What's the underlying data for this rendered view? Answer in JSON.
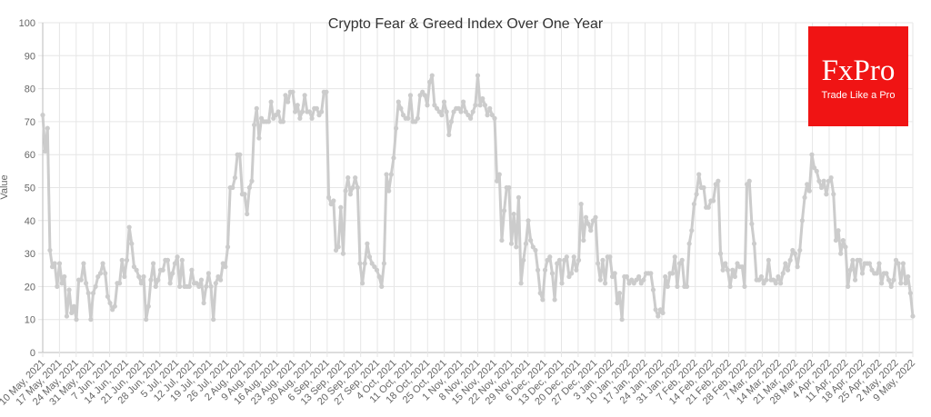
{
  "chart_data": {
    "type": "line",
    "title": "Crypto Fear & Greed Index Over One Year",
    "xlabel": "",
    "ylabel": "Value",
    "ylim": [
      0,
      100
    ],
    "yticks": [
      0,
      10,
      20,
      30,
      40,
      50,
      60,
      70,
      80,
      90,
      100
    ],
    "grid": true,
    "legend": "none",
    "line_color": "#cccccc",
    "x_range": [
      "10 May, 2021",
      "9 May, 2022"
    ],
    "xticks": [
      "10 May, 2021",
      "17 May, 2021",
      "24 May, 2021",
      "31 May, 2021",
      "7 Jun, 2021",
      "14 Jun, 2021",
      "21 Jun, 2021",
      "28 Jun, 2021",
      "5 Jul, 2021",
      "12 Jul, 2021",
      "19 Jul, 2021",
      "26 Jul, 2021",
      "2 Aug, 2021",
      "9 Aug, 2021",
      "16 Aug, 2021",
      "23 Aug, 2021",
      "30 Aug, 2021",
      "6 Sep, 2021",
      "13 Sep, 2021",
      "20 Sep, 2021",
      "27 Sep, 2021",
      "4 Oct, 2021",
      "11 Oct, 2021",
      "18 Oct, 2021",
      "25 Oct, 2021",
      "1 Nov, 2021",
      "8 Nov, 2021",
      "15 Nov, 2021",
      "22 Nov, 2021",
      "29 Nov, 2021",
      "6 Dec, 2021",
      "13 Dec, 2021",
      "20 Dec, 2021",
      "27 Dec, 2021",
      "3 Jan, 2022",
      "10 Jan, 2022",
      "17 Jan, 2022",
      "24 Jan, 2022",
      "31 Jan, 2022",
      "7 Feb, 2022",
      "14 Feb, 2022",
      "21 Feb, 2022",
      "28 Feb, 2022",
      "7 Mar, 2022",
      "14 Mar, 2022",
      "21 Mar, 2022",
      "28 Mar, 2022",
      "4 Apr, 2022",
      "11 Apr, 2022",
      "18 Apr, 2022",
      "25 Apr, 2022",
      "2 May, 2022",
      "9 May, 2022"
    ],
    "values": [
      72,
      61,
      68,
      31,
      26,
      27,
      20,
      27,
      21,
      23,
      11,
      19,
      12,
      14,
      10,
      22,
      22,
      27,
      21,
      18,
      10,
      18,
      20,
      23,
      24,
      27,
      24,
      17,
      15,
      13,
      14,
      21,
      21,
      28,
      23,
      28,
      38,
      33,
      26,
      25,
      23,
      21,
      23,
      10,
      14,
      22,
      27,
      20,
      22,
      25,
      25,
      28,
      28,
      21,
      24,
      27,
      29,
      20,
      28,
      20,
      20,
      20,
      25,
      21,
      21,
      20,
      22,
      15,
      20,
      24,
      20,
      10,
      21,
      23,
      22,
      27,
      26,
      32,
      50,
      50,
      53,
      60,
      60,
      48,
      48,
      42,
      50,
      52,
      69,
      74,
      65,
      71,
      70,
      70,
      70,
      76,
      71,
      72,
      73,
      70,
      70,
      78,
      76,
      79,
      79,
      73,
      75,
      71,
      73,
      78,
      73,
      73,
      71,
      74,
      74,
      72,
      73,
      79,
      79,
      47,
      45,
      46,
      31,
      32,
      44,
      30,
      49,
      53,
      48,
      50,
      53,
      50,
      27,
      21,
      27,
      33,
      29,
      27,
      26,
      25,
      23,
      20,
      27,
      54,
      49,
      54,
      59,
      68,
      76,
      74,
      72,
      71,
      71,
      78,
      70,
      70,
      71,
      78,
      79,
      78,
      75,
      82,
      84,
      75,
      74,
      73,
      72,
      76,
      73,
      66,
      70,
      73,
      74,
      74,
      73,
      76,
      73,
      72,
      71,
      73,
      75,
      84,
      75,
      77,
      75,
      72,
      74,
      72,
      71,
      52,
      54,
      34,
      43,
      50,
      50,
      33,
      42,
      32,
      47,
      21,
      28,
      33,
      40,
      34,
      32,
      31,
      25,
      18,
      16,
      25,
      28,
      29,
      24,
      16,
      27,
      28,
      21,
      28,
      29,
      23,
      24,
      29,
      25,
      28,
      45,
      34,
      41,
      39,
      37,
      40,
      41,
      27,
      22,
      28,
      21,
      29,
      29,
      23,
      24,
      15,
      18,
      10,
      23,
      23,
      21,
      22,
      21,
      22,
      23,
      21,
      22,
      24,
      24,
      24,
      19,
      13,
      11,
      13,
      12,
      23,
      20,
      24,
      24,
      29,
      20,
      27,
      28,
      20,
      20,
      33,
      37,
      45,
      48,
      54,
      50,
      50,
      44,
      44,
      46,
      46,
      51,
      52,
      30,
      25,
      27,
      25,
      20,
      25,
      23,
      27,
      26,
      26,
      20,
      51,
      52,
      39,
      33,
      22,
      22,
      23,
      21,
      22,
      28,
      22,
      22,
      21,
      23,
      21,
      24,
      27,
      25,
      28,
      31,
      30,
      26,
      31,
      40,
      47,
      51,
      49,
      60,
      56,
      55,
      52,
      50,
      52,
      48,
      52,
      53,
      48,
      34,
      37,
      30,
      34,
      32,
      20,
      25,
      28,
      22,
      28,
      28,
      24,
      27,
      27,
      27,
      25,
      24,
      24,
      27,
      21,
      24,
      24,
      22,
      20,
      22,
      28,
      27,
      21,
      27,
      21,
      23,
      18,
      11
    ]
  },
  "logo": {
    "brand": "FxPro",
    "tagline": "Trade Like a Pro",
    "color": "#f01414"
  }
}
